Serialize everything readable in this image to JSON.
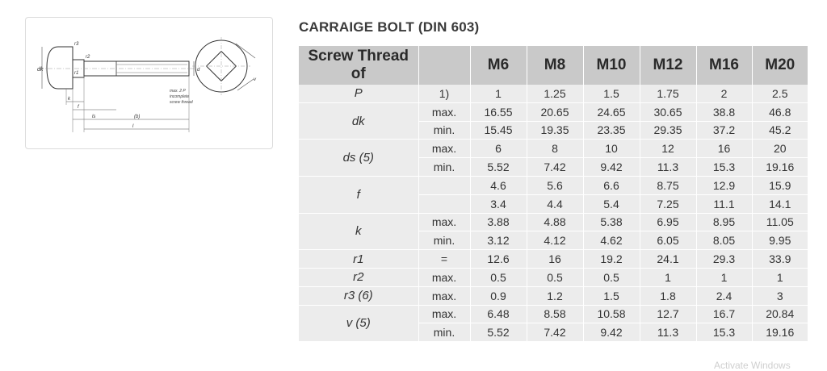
{
  "page": {
    "title": "CARRAIGE BOLT (DIN 603)"
  },
  "diagram": {
    "note_line1": "max. 2 P",
    "note_line2": "incomplete",
    "note_line3": "screw thread",
    "label_dk": "dk",
    "label_k": "k",
    "label_f": "f",
    "label_ls": "ls",
    "label_l": "l",
    "label_b": "(b)",
    "label_r1": "r1",
    "label_r2": "r2",
    "label_r3": "r3",
    "label_d": "d",
    "label_v": "v"
  },
  "table": {
    "header_label": "Screw Thread of",
    "sizes": [
      "M6",
      "M8",
      "M10",
      "M12",
      "M16",
      "M20"
    ],
    "rows": [
      {
        "param": "P",
        "qual": "1)",
        "values": [
          "1",
          "1.25",
          "1.5",
          "1.75",
          "2",
          "2.5"
        ]
      },
      {
        "param": "dk",
        "qual": "max.",
        "values": [
          "16.55",
          "20.65",
          "24.65",
          "30.65",
          "38.8",
          "46.8"
        ]
      },
      {
        "param": "",
        "qual": "min.",
        "values": [
          "15.45",
          "19.35",
          "23.35",
          "29.35",
          "37.2",
          "45.2"
        ]
      },
      {
        "param": "ds (5)",
        "qual": "max.",
        "values": [
          "6",
          "8",
          "10",
          "12",
          "16",
          "20"
        ]
      },
      {
        "param": "",
        "qual": "min.",
        "values": [
          "5.52",
          "7.42",
          "9.42",
          "11.3",
          "15.3",
          "19.16"
        ]
      },
      {
        "param": "f",
        "qual": "",
        "values": [
          "4.6",
          "5.6",
          "6.6",
          "8.75",
          "12.9",
          "15.9"
        ]
      },
      {
        "param": "",
        "qual": "",
        "values": [
          "3.4",
          "4.4",
          "5.4",
          "7.25",
          "11.1",
          "14.1"
        ]
      },
      {
        "param": "k",
        "qual": "max.",
        "values": [
          "3.88",
          "4.88",
          "5.38",
          "6.95",
          "8.95",
          "11.05"
        ]
      },
      {
        "param": "",
        "qual": "min.",
        "values": [
          "3.12",
          "4.12",
          "4.62",
          "6.05",
          "8.05",
          "9.95"
        ]
      },
      {
        "param": "r1",
        "qual": "=",
        "values": [
          "12.6",
          "16",
          "19.2",
          "24.1",
          "29.3",
          "33.9"
        ]
      },
      {
        "param": "r2",
        "qual": "max.",
        "values": [
          "0.5",
          "0.5",
          "0.5",
          "1",
          "1",
          "1"
        ]
      },
      {
        "param": "r3 (6)",
        "qual": "max.",
        "values": [
          "0.9",
          "1.2",
          "1.5",
          "1.8",
          "2.4",
          "3"
        ]
      },
      {
        "param": "v (5)",
        "qual": "max.",
        "values": [
          "6.48",
          "8.58",
          "10.58",
          "12.7",
          "16.7",
          "20.84"
        ]
      },
      {
        "param": "",
        "qual": "min.",
        "values": [
          "5.52",
          "7.42",
          "9.42",
          "11.3",
          "15.3",
          "19.16"
        ]
      }
    ]
  },
  "watermark": "Activate Windows",
  "colors": {
    "header_bg": "#c9c9c9",
    "body_bg": "#ececec",
    "title_color": "#3a3a3a"
  }
}
